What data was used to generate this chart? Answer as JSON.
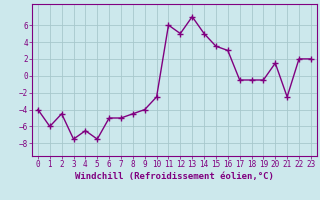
{
  "x": [
    0,
    1,
    2,
    3,
    4,
    5,
    6,
    7,
    8,
    9,
    10,
    11,
    12,
    13,
    14,
    15,
    16,
    17,
    18,
    19,
    20,
    21,
    22,
    23
  ],
  "y": [
    -4.0,
    -6.0,
    -4.5,
    -7.5,
    -6.5,
    -7.5,
    -5.0,
    -5.0,
    -4.5,
    -4.0,
    -2.5,
    6.0,
    5.0,
    7.0,
    5.0,
    3.5,
    3.0,
    -0.5,
    -0.5,
    -0.5,
    1.5,
    -2.5,
    2.0,
    2.0
  ],
  "line_color": "#800080",
  "marker": "+",
  "marker_size": 5,
  "bg_color": "#cce8ec",
  "grid_color": "#a8c8cc",
  "xlabel": "Windchill (Refroidissement éolien,°C)",
  "xlabel_fontsize": 6.5,
  "xlabel_color": "#800080",
  "ylim": [
    -9.5,
    8.5
  ],
  "xlim": [
    -0.5,
    23.5
  ],
  "yticks": [
    -8,
    -6,
    -4,
    -2,
    0,
    2,
    4,
    6
  ],
  "xticks": [
    0,
    1,
    2,
    3,
    4,
    5,
    6,
    7,
    8,
    9,
    10,
    11,
    12,
    13,
    14,
    15,
    16,
    17,
    18,
    19,
    20,
    21,
    22,
    23
  ],
  "tick_fontsize": 5.5,
  "tick_color": "#800080",
  "line_width": 1.0,
  "spine_color": "#800080"
}
